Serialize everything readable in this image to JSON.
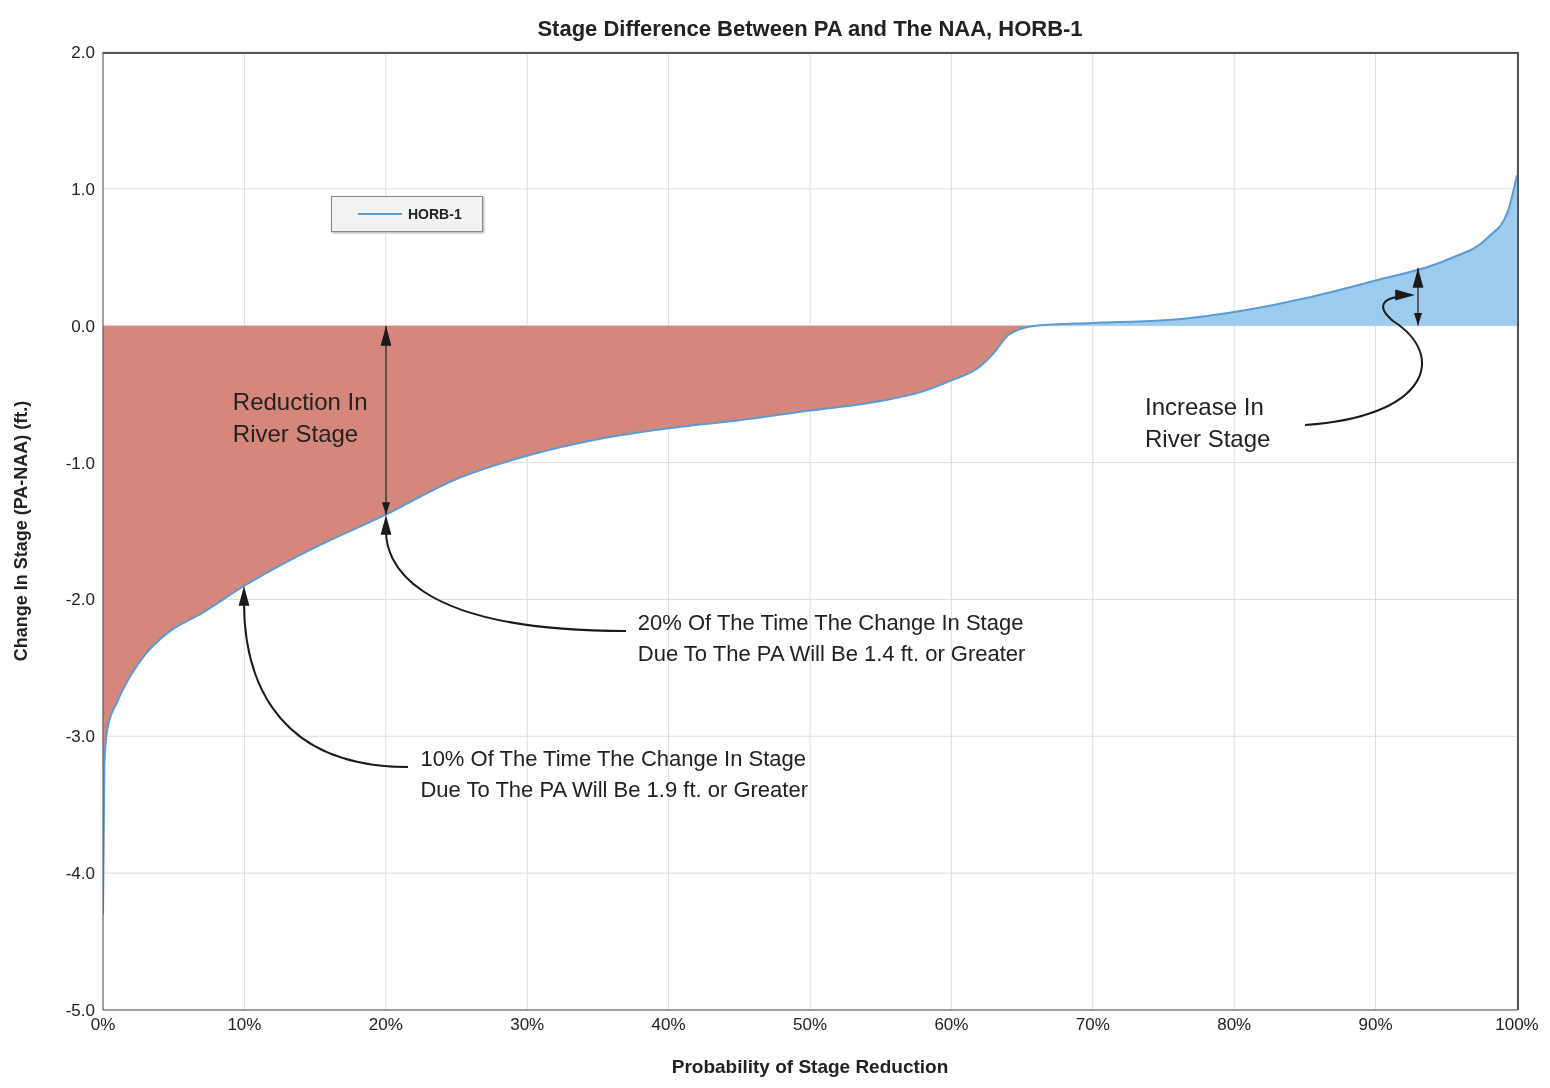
{
  "chart_data": {
    "type": "area",
    "title": "Stage Difference Between PA and The NAA, HORB-1",
    "xlabel": "Probability of Stage Reduction",
    "ylabel": "Change In Stage (PA-NAA) (ft.)",
    "x": [
      0,
      0.1,
      0.3,
      1,
      2,
      3,
      4.5,
      7,
      10,
      15,
      20,
      25,
      30,
      35,
      40,
      45,
      50,
      55,
      58,
      60,
      62,
      63,
      64,
      65,
      66,
      70,
      75,
      78,
      80,
      85,
      90,
      95,
      98,
      99.3,
      100
    ],
    "series": [
      {
        "name": "HORB-1",
        "color": "#5b9bd5",
        "colors": [
          "#d4877a",
          "#d4877a",
          "#d4877a",
          "#d4877a",
          "#d4877a",
          "#d4877a",
          "#d4877a",
          "#d4877a",
          "#d4877a",
          "#d4877a",
          "#d4877a",
          "#d4877a",
          "#d4877a",
          "#d4877a",
          "#d4877a",
          "#d4877a",
          "#d4877a",
          "#d4877a",
          "#d4877a",
          "#d4877a",
          "#d4877a",
          "#d4877a",
          "#d4877a",
          "#d4877a",
          "#9dcbee",
          "#9dcbee",
          "#9dcbee",
          "#9dcbee",
          "#9dcbee",
          "#9dcbee",
          "#9dcbee",
          "#9dcbee",
          "#9dcbee",
          "#9dcbee",
          "#9dcbee"
        ],
        "values": [
          -4.3,
          -3.2,
          -2.95,
          -2.75,
          -2.55,
          -2.4,
          -2.25,
          -2.1,
          -1.9,
          -1.62,
          -1.38,
          -1.12,
          -0.95,
          -0.83,
          -0.75,
          -0.69,
          -0.62,
          -0.55,
          -0.48,
          -0.4,
          -0.3,
          -0.2,
          -0.07,
          -0.02,
          0,
          0.02,
          0.04,
          0.07,
          0.1,
          0.2,
          0.33,
          0.48,
          0.65,
          0.82,
          1.1
        ]
      }
    ],
    "xlim": [
      0,
      100
    ],
    "xticks": [
      {
        "value": 0,
        "label": "0%"
      },
      {
        "value": 10,
        "label": "10%"
      },
      {
        "value": 20,
        "label": "20%"
      },
      {
        "value": 30,
        "label": "30%"
      },
      {
        "value": 40,
        "label": "40%"
      },
      {
        "value": 50,
        "label": "50%"
      },
      {
        "value": 60,
        "label": "60%"
      },
      {
        "value": 70,
        "label": "70%"
      },
      {
        "value": 80,
        "label": "80%"
      },
      {
        "value": 90,
        "label": "90%"
      },
      {
        "value": 100,
        "label": "100%"
      }
    ],
    "ylim": [
      -5,
      2
    ],
    "yticks": [
      {
        "value": -5,
        "label": "-5.0"
      },
      {
        "value": -4,
        "label": "-4.0"
      },
      {
        "value": -3,
        "label": "-3.0"
      },
      {
        "value": -2,
        "label": "-2.0"
      },
      {
        "value": -1,
        "label": "-1.0"
      },
      {
        "value": 0,
        "label": "0.0"
      },
      {
        "value": 1,
        "label": "1.0"
      },
      {
        "value": 2,
        "label": "2.0"
      }
    ],
    "grid": true,
    "legend": "top left",
    "annotations": [
      "Reduction In River Stage",
      "Increase In River Stage",
      "20% Of The Time The Change In Stage Due To The PA Will Be 1.4 ft. or Greater",
      "10% Of The Time The Change In Stage Due To The PA Will Be 1.9 ft. or Greater"
    ]
  }
}
